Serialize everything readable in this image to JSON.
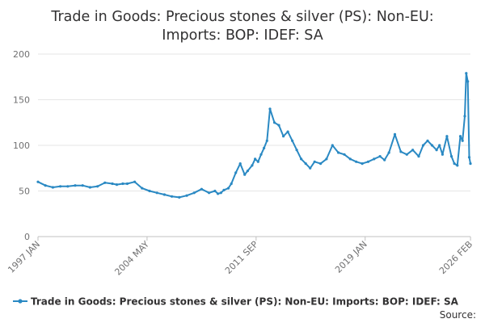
{
  "chart_data": {
    "type": "line",
    "title_lines": [
      "Trade in Goods: Precious stones & silver (PS): Non-EU:",
      "Imports: BOP: IDEF: SA"
    ],
    "xlabel": "",
    "ylabel": "",
    "ylim": [
      0,
      200
    ],
    "y_ticks": [
      "0",
      "50",
      "100",
      "150",
      "200"
    ],
    "x_ticks": [
      "1997 JAN",
      "2004 MAY",
      "2011 SEP",
      "2019 JAN",
      "2026 FEB"
    ],
    "grid": true,
    "legend_position": "bottom",
    "series_color": "#2a89c3",
    "series": [
      {
        "name": "Trade in Goods: Precious stones & silver (PS): Non-EU: Imports: BOP: IDEF: SA",
        "x": [
          1997.0,
          1997.5,
          1998.0,
          1998.5,
          1999.0,
          1999.5,
          2000.0,
          2000.5,
          2001.0,
          2001.5,
          2002.0,
          2002.3,
          2002.7,
          2003.0,
          2003.5,
          2004.0,
          2004.5,
          2005.0,
          2005.5,
          2006.0,
          2006.5,
          2007.0,
          2007.5,
          2008.0,
          2008.5,
          2008.9,
          2009.1,
          2009.3,
          2009.5,
          2009.8,
          2010.0,
          2010.3,
          2010.6,
          2010.9,
          2011.1,
          2011.4,
          2011.6,
          2011.8,
          2012.0,
          2012.2,
          2012.4,
          2012.6,
          2012.9,
          2013.2,
          2013.5,
          2013.8,
          2014.1,
          2014.4,
          2014.7,
          2015.0,
          2015.3,
          2015.6,
          2016.0,
          2016.4,
          2016.8,
          2017.2,
          2017.6,
          2018.0,
          2018.4,
          2018.8,
          2019.2,
          2019.6,
          2020.0,
          2020.3,
          2020.6,
          2021.0,
          2021.4,
          2021.8,
          2022.2,
          2022.6,
          2022.9,
          2023.2,
          2023.5,
          2023.8,
          2024.0,
          2024.2,
          2024.5,
          2024.8,
          2025.0,
          2025.2,
          2025.4,
          2025.55,
          2025.7,
          2025.8,
          2025.9,
          2026.0,
          2026.08
        ],
        "values": [
          60,
          56,
          54,
          55,
          55,
          56,
          56,
          54,
          55,
          59,
          58,
          57,
          58,
          58,
          60,
          53,
          50,
          48,
          46,
          44,
          43,
          45,
          48,
          52,
          48,
          50,
          47,
          48,
          51,
          53,
          58,
          70,
          80,
          68,
          72,
          78,
          85,
          82,
          90,
          97,
          105,
          140,
          125,
          122,
          110,
          115,
          105,
          95,
          85,
          80,
          75,
          82,
          80,
          85,
          100,
          92,
          90,
          85,
          82,
          80,
          82,
          85,
          88,
          84,
          92,
          112,
          93,
          90,
          95,
          88,
          100,
          105,
          100,
          95,
          100,
          90,
          110,
          88,
          80,
          78,
          110,
          105,
          132,
          179,
          170,
          87,
          80
        ]
      }
    ],
    "legend": "Trade in Goods: Precious stones & silver (PS): Non-EU: Imports: BOP: IDEF: SA",
    "source_label": "Source:"
  }
}
